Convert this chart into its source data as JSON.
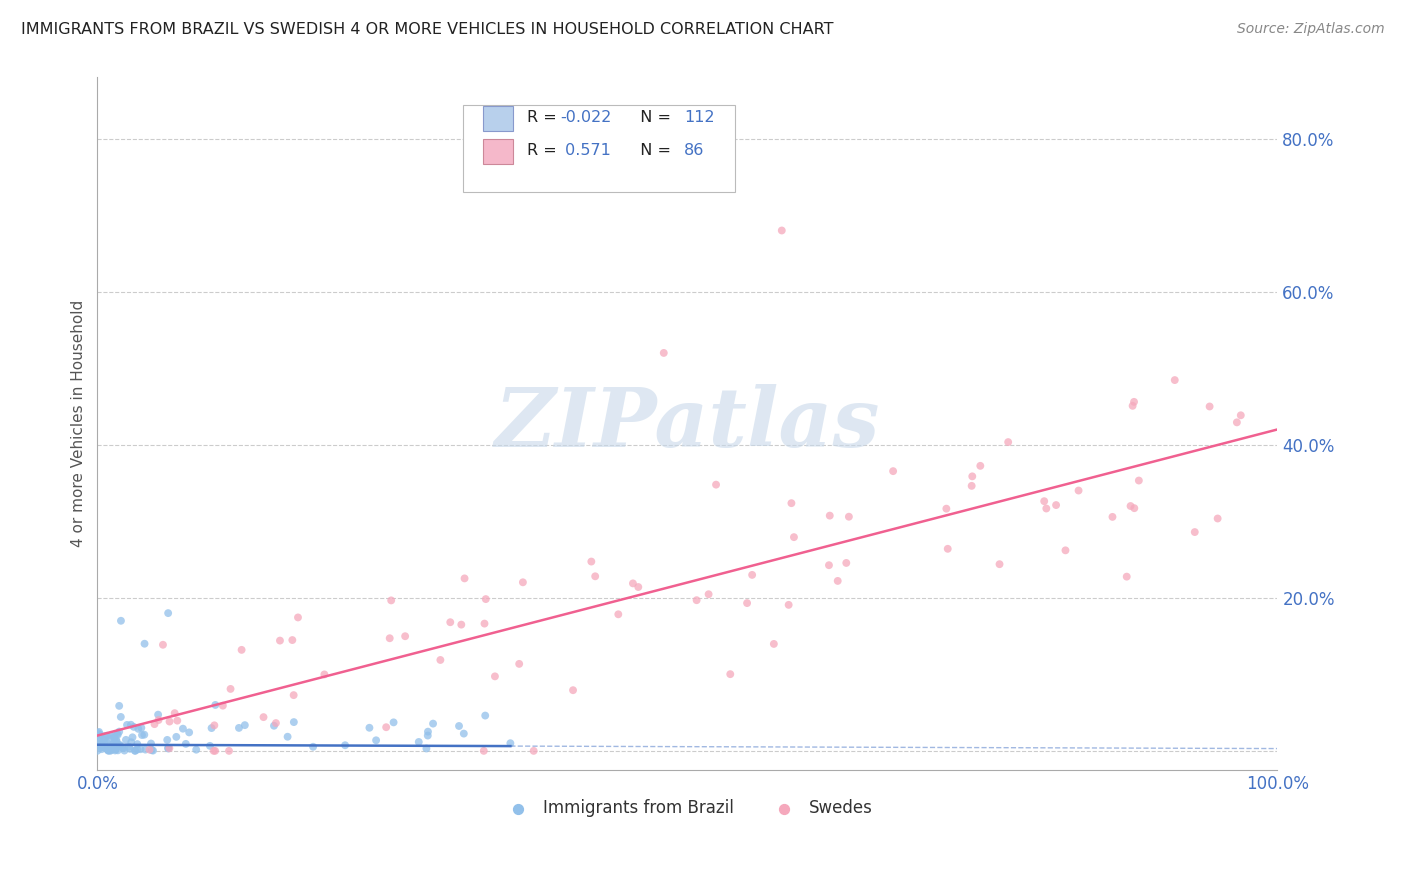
{
  "title": "IMMIGRANTS FROM BRAZIL VS SWEDISH 4 OR MORE VEHICLES IN HOUSEHOLD CORRELATION CHART",
  "source": "Source: ZipAtlas.com",
  "ylabel": "4 or more Vehicles in Household",
  "xlim": [
    0.0,
    1.0
  ],
  "ylim": [
    -0.025,
    0.88
  ],
  "ytick_positions": [
    0.0,
    0.2,
    0.4,
    0.6,
    0.8
  ],
  "ytick_labels": [
    "",
    "20.0%",
    "40.0%",
    "60.0%",
    "80.0%"
  ],
  "xtick_labels": [
    "0.0%",
    "100.0%"
  ],
  "brazil_r": -0.022,
  "brazil_n": 112,
  "swedes_r": 0.571,
  "swedes_n": 86,
  "brazil_color": "#92c0ea",
  "swedes_color": "#f5a8bc",
  "brazil_line_color": "#4472c4",
  "swedes_line_color": "#f06090",
  "watermark_text": "ZIPatlas",
  "watermark_color": "#c8d8ea",
  "background_color": "#ffffff",
  "grid_color": "#cccccc",
  "title_color": "#222222",
  "axis_label_color": "#4472c4",
  "legend_brazil_fill": "#b8d0ec",
  "legend_swedes_fill": "#f5b8ca",
  "legend_border_color": "#bbbbbb",
  "legend_text_black": "#222222",
  "legend_text_blue": "#4472c4"
}
